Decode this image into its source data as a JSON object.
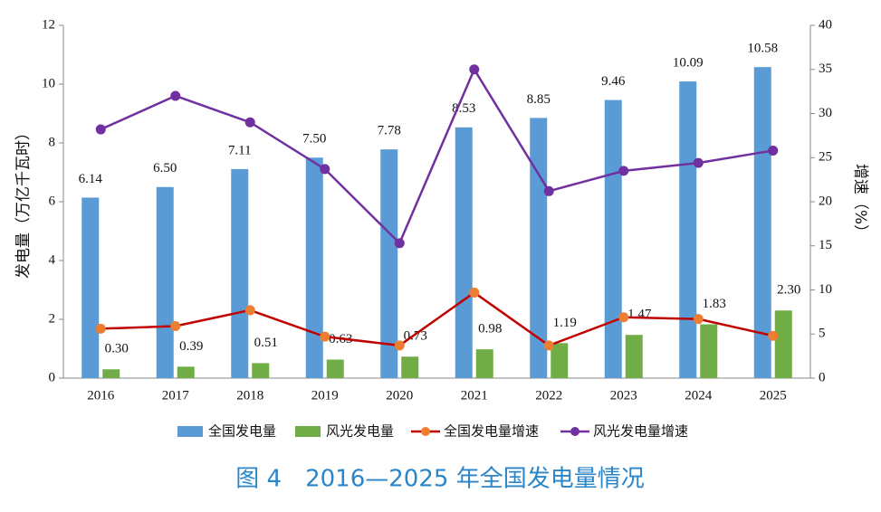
{
  "chart_data": {
    "type": "bar",
    "caption": "图 4　2016—2025 年全国发电量情况",
    "y_label": "发电量（万亿千瓦时）",
    "y2_label": "增速（%）",
    "categories": [
      "2016",
      "2017",
      "2018",
      "2019",
      "2020",
      "2021",
      "2022",
      "2023",
      "2024",
      "2025"
    ],
    "ylim": [
      0,
      12
    ],
    "yticks": [
      0,
      2,
      4,
      6,
      8,
      10,
      12
    ],
    "y2lim": [
      0,
      40
    ],
    "y2ticks": [
      0,
      5,
      10,
      15,
      20,
      25,
      30,
      35,
      40
    ],
    "legend": "bottom",
    "series": [
      {
        "name": "全国发电量",
        "type": "bar",
        "color": "#5b9bd5",
        "values": [
          6.14,
          6.5,
          7.11,
          7.5,
          7.78,
          8.53,
          8.85,
          9.46,
          10.09,
          10.58
        ],
        "value_labels": [
          "6.14",
          "6.50",
          "7.11",
          "7.50",
          "7.78",
          "8.53",
          "8.85",
          "9.46",
          "10.09",
          "10.58"
        ]
      },
      {
        "name": "风光发电量",
        "type": "bar",
        "color": "#70ad47",
        "values": [
          0.3,
          0.39,
          0.51,
          0.63,
          0.73,
          0.98,
          1.19,
          1.47,
          1.83,
          2.3
        ],
        "value_labels": [
          "0.30",
          "0.39",
          "0.51",
          "0.63",
          "0.73",
          "0.98",
          "1.19",
          "1.47",
          "1.83",
          "2.30"
        ]
      },
      {
        "name": "全国发电量增速",
        "type": "line",
        "axis": "y2",
        "color": "#c00000",
        "marker_color": "#ed7d31",
        "values": [
          5.6,
          5.9,
          7.7,
          4.7,
          3.7,
          9.7,
          3.7,
          6.9,
          6.7,
          4.8
        ]
      },
      {
        "name": "风光发电量增速",
        "type": "line",
        "axis": "y2",
        "color": "#7030a0",
        "marker_color": "#7030a0",
        "values": [
          28.2,
          32.0,
          29.0,
          23.7,
          15.3,
          35.0,
          21.2,
          23.5,
          24.4,
          25.8
        ]
      }
    ]
  }
}
